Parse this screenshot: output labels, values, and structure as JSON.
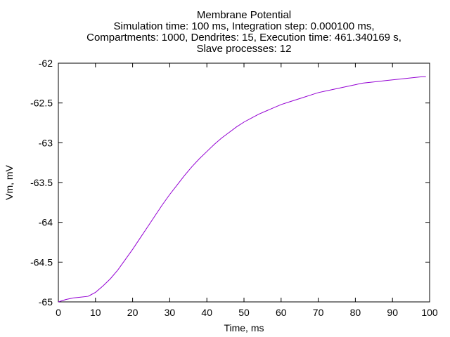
{
  "chart_data": {
    "type": "line",
    "title_lines": [
      "Membrane Potential",
      "Simulation time: 100 ms, Integration step: 0.000100 ms,",
      "Compartments: 1000, Dendrites: 15, Execution time: 461.340169 s,",
      "Slave processes: 12"
    ],
    "xlabel": "Time, ms",
    "ylabel": "Vm, mV",
    "xlim": [
      0,
      100
    ],
    "ylim": [
      -65,
      -62
    ],
    "x_ticks": [
      0,
      10,
      20,
      30,
      40,
      50,
      60,
      70,
      80,
      90,
      100
    ],
    "y_ticks": [
      -65,
      -64.5,
      -64,
      -63.5,
      -63,
      -62.5,
      -62
    ],
    "grid": false,
    "legend": "none",
    "series": [
      {
        "color": "#9400d3",
        "x": [
          0,
          2,
          4,
          6,
          8,
          10,
          12,
          14,
          16,
          18,
          20,
          22,
          24,
          26,
          28,
          30,
          32,
          34,
          36,
          38,
          40,
          42,
          44,
          46,
          48,
          50,
          52,
          54,
          56,
          58,
          60,
          62,
          64,
          66,
          68,
          70,
          72,
          74,
          76,
          78,
          80,
          82,
          84,
          86,
          88,
          90,
          92,
          94,
          96,
          98,
          99
        ],
        "y": [
          -65.0,
          -64.97,
          -64.95,
          -64.94,
          -64.93,
          -64.88,
          -64.8,
          -64.71,
          -64.6,
          -64.47,
          -64.34,
          -64.2,
          -64.06,
          -63.92,
          -63.78,
          -63.65,
          -63.53,
          -63.41,
          -63.3,
          -63.2,
          -63.11,
          -63.02,
          -62.94,
          -62.87,
          -62.8,
          -62.74,
          -62.69,
          -62.64,
          -62.6,
          -62.56,
          -62.52,
          -62.49,
          -62.46,
          -62.43,
          -62.4,
          -62.37,
          -62.35,
          -62.33,
          -62.31,
          -62.29,
          -62.27,
          -62.25,
          -62.24,
          -62.23,
          -62.22,
          -62.21,
          -62.2,
          -62.19,
          -62.18,
          -62.17,
          -62.17
        ]
      }
    ]
  }
}
